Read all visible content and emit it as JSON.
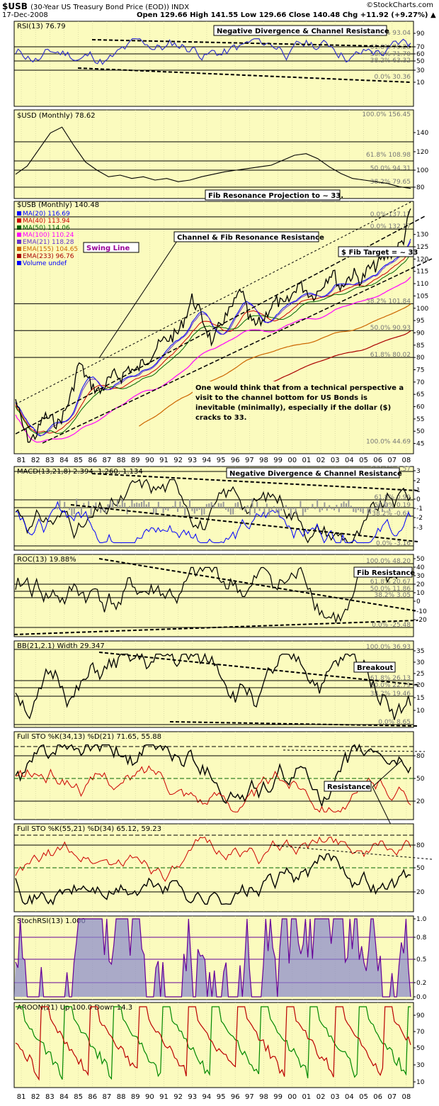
{
  "header": {
    "symbol": "$USB",
    "subtitle": "(30-Year US Treasury Bond Price (EOD)) INDX",
    "date": "17-Dec-2008",
    "ohlc": "Open 129.66   High 141.55   Low 129.66   Close 140.48   Chg +11.92 (+9.27%) ▲",
    "site": "©StockCharts.com"
  },
  "colors": {
    "panel_bg": "#fbfbbe",
    "price": "#000000",
    "ma20": "#0000ff",
    "ma40": "#cc0000",
    "ma50": "#006600",
    "ma100": "#ff00ff",
    "ema21": "#6633cc",
    "ema155": "#cc6600",
    "ema233": "#aa0000",
    "stoch_rsi": "#660099",
    "aroon_up": "#008800",
    "aroon_down": "#bb0000"
  },
  "x_axis": {
    "labels": [
      "81",
      "82",
      "83",
      "84",
      "85",
      "86",
      "87",
      "88",
      "89",
      "90",
      "91",
      "92",
      "93",
      "94",
      "95",
      "96",
      "97",
      "98",
      "99",
      "00",
      "01",
      "02",
      "03",
      "04",
      "05",
      "06",
      "07",
      "08"
    ]
  },
  "chart_data": [
    {
      "type": "line",
      "title": "RSI(13) 76.79",
      "yticks": [
        "90",
        "70",
        "60",
        "50",
        "30",
        "10"
      ],
      "fib_labels": [
        "100.0% 93.04",
        "61.8% 79.28",
        "50.0% 71.70",
        "38.2% 63.32",
        "0.0% 30.36"
      ],
      "annotations": [
        "Negative Divergence & Channel Resistance"
      ]
    },
    {
      "type": "line",
      "title": "$USD (Monthly) 78.62",
      "yticks": [
        "140",
        "120",
        "100",
        "80"
      ],
      "fib_labels": [
        "100.0% 156.45",
        "61.8% 108.98",
        "50.0% 94.31",
        "38.2% 79.65"
      ],
      "annotations": [
        "Fib Resonance Projection to ~ 33."
      ]
    },
    {
      "type": "line",
      "title": "$USB (Monthly) 140.48",
      "series": [
        {
          "name": "MA(20) 116.69"
        },
        {
          "name": "MA(40) 113.94"
        },
        {
          "name": "MA(50) 114.06"
        },
        {
          "name": "MA(100) 110.24"
        },
        {
          "name": "EMA(21) 118.28"
        },
        {
          "name": "EMA(155) 104.65"
        },
        {
          "name": "EMA(233) 96.76"
        },
        {
          "name": "Volume undef"
        }
      ],
      "yticks": [
        "130",
        "125",
        "120",
        "115",
        "110",
        "105",
        "100",
        "95",
        "90",
        "85",
        "80",
        "75",
        "70",
        "65",
        "60",
        "55",
        "50",
        "45"
      ],
      "fib_labels": [
        "0.0% 137.17",
        "0.0% 132.17",
        "38.2% 101.84",
        "50.0% 90.93",
        "61.8% 80.02",
        "100.0% 44.69"
      ],
      "annotations": [
        "Channel & Fib Resonance Resistance",
        "Swing Line",
        "$ Fib Target = ~ 33",
        "One would think that from a technical perspective a visit to the channel bottom for US Bonds is inevitable (minimally), especially if the dollar ($) cracks to 33."
      ],
      "values": [
        63,
        52,
        46,
        49,
        56,
        55,
        53,
        58,
        66,
        78,
        72,
        68,
        66,
        70,
        73,
        72,
        76,
        74,
        78,
        80,
        84,
        87,
        88,
        90,
        96,
        104,
        99,
        92,
        85,
        94,
        97,
        102,
        108,
        96,
        93,
        95,
        100,
        103,
        101,
        104,
        110,
        108,
        105,
        107,
        112,
        115,
        108,
        112,
        114,
        111,
        116,
        117,
        120,
        122,
        124,
        128,
        140.48
      ]
    },
    {
      "type": "line",
      "title": "MACD(13,21,8) 2.394, 1.260, 1.134",
      "yticks": [
        "3",
        "2",
        "1",
        "0",
        "-1",
        "-2",
        "-3"
      ],
      "fib_labels": [
        "100.0% 3.57",
        "61.8% 0.99",
        "50.0% 0.19",
        "38.2% -0.61",
        "0.0% -3.16"
      ],
      "annotations": [
        "Negative Divergence & Channel Resistance"
      ]
    },
    {
      "type": "line",
      "title": "ROC(13) 19.88%",
      "yticks": [
        "50",
        "40",
        "30",
        "20",
        "10",
        "0",
        "-10",
        "-20"
      ],
      "fib_labels": [
        "100.0% 48.20",
        "61.8% 20.67",
        "50.0% 11.86",
        "38.2% 3.05",
        "0.0% -25.48"
      ],
      "annotations": [
        "Fib Resistance"
      ]
    },
    {
      "type": "line",
      "title": "BB(21,2.1) Width 29.347",
      "yticks": [
        "35",
        "30",
        "25",
        "20",
        "15",
        "10"
      ],
      "fib_labels": [
        "100.0% 36.93",
        "61.8% 26.13",
        "50.0% 22.79",
        "38.2% 19.46",
        "0.0% 8.65"
      ],
      "annotations": [
        "Breakout"
      ]
    },
    {
      "type": "line",
      "title": "Full STO %K(34,13) %D(21) 71.65, 55.88",
      "yticks": [
        "80",
        "50",
        "20"
      ],
      "annotations": [
        "Resistance"
      ]
    },
    {
      "type": "line",
      "title": "Full STO %K(55,21) %D(34) 65.12, 59.23",
      "yticks": [
        "80",
        "50",
        "20"
      ]
    },
    {
      "type": "line",
      "title": "StochRSI(13) 1.000",
      "yticks": [
        "1.0",
        "0.8",
        "0.5",
        "0.2",
        "0.0"
      ]
    },
    {
      "type": "line",
      "title": "AROON(21) Up 100.0 Down 14.3",
      "yticks": [
        "90",
        "70",
        "50",
        "30",
        "10"
      ]
    }
  ]
}
